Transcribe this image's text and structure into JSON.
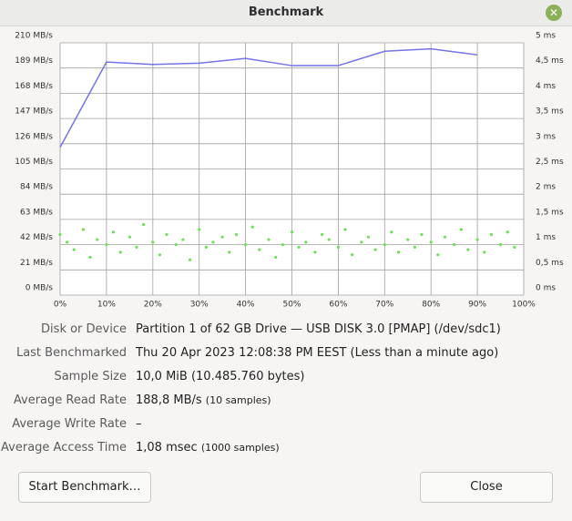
{
  "window": {
    "title": "Benchmark"
  },
  "chart_data": {
    "type": "line",
    "xticks": [
      {
        "value": 0,
        "label": "0%"
      },
      {
        "value": 10,
        "label": "10%"
      },
      {
        "value": 20,
        "label": "20%"
      },
      {
        "value": 30,
        "label": "30%"
      },
      {
        "value": 40,
        "label": "40%"
      },
      {
        "value": 50,
        "label": "50%"
      },
      {
        "value": 60,
        "label": "60%"
      },
      {
        "value": 70,
        "label": "70%"
      },
      {
        "value": 80,
        "label": "80%"
      },
      {
        "value": 90,
        "label": "90%"
      },
      {
        "value": 100,
        "label": "100%"
      }
    ],
    "xlim": [
      0,
      100
    ],
    "ylim": [
      0,
      210
    ],
    "yticks": [
      {
        "value": 0,
        "label": "0 MB/s"
      },
      {
        "value": 21,
        "label": "21 MB/s"
      },
      {
        "value": 42,
        "label": "42 MB/s"
      },
      {
        "value": 63,
        "label": "63 MB/s"
      },
      {
        "value": 84,
        "label": "84 MB/s"
      },
      {
        "value": 105,
        "label": "105 MB/s"
      },
      {
        "value": 126,
        "label": "126 MB/s"
      },
      {
        "value": 147,
        "label": "147 MB/s"
      },
      {
        "value": 168,
        "label": "168 MB/s"
      },
      {
        "value": 189,
        "label": "189 MB/s"
      },
      {
        "value": 210,
        "label": "210 MB/s"
      }
    ],
    "y2lim": [
      0,
      5
    ],
    "y2ticks": [
      {
        "value": 0,
        "label": "0 ms"
      },
      {
        "value": 0.5,
        "label": "0,5 ms"
      },
      {
        "value": 1,
        "label": "1 ms"
      },
      {
        "value": 1.5,
        "label": "1,5 ms"
      },
      {
        "value": 2,
        "label": "2 ms"
      },
      {
        "value": 2.5,
        "label": "2,5 ms"
      },
      {
        "value": 3,
        "label": "3 ms"
      },
      {
        "value": 3.5,
        "label": "3,5 ms"
      },
      {
        "value": 4,
        "label": "4 ms"
      },
      {
        "value": 4.5,
        "label": "4,5 ms"
      },
      {
        "value": 5,
        "label": "5 ms"
      }
    ],
    "grid": true,
    "series": [
      {
        "type": "line",
        "color": "#7474e8",
        "x": [
          0,
          10,
          20,
          30,
          40,
          50,
          60,
          70,
          80,
          90
        ],
        "values": [
          123,
          194,
          192,
          193,
          197,
          191,
          191,
          203,
          205,
          200
        ]
      },
      {
        "type": "scatter",
        "axis": "y2",
        "color": "#6ee05a",
        "x": [
          0,
          1.5,
          3,
          5,
          6.5,
          8,
          10,
          11.5,
          13,
          15,
          16.5,
          18,
          20,
          21.5,
          23,
          25,
          26.5,
          28,
          30,
          31.5,
          33,
          35,
          36.5,
          38,
          40,
          41.5,
          43,
          45,
          46.5,
          48,
          50,
          51.5,
          53,
          55,
          56.5,
          58,
          60,
          61.5,
          63,
          65,
          66.5,
          68,
          70,
          71.5,
          73,
          75,
          76.5,
          78,
          80,
          81.5,
          83,
          85,
          86.5,
          88,
          90,
          91.5,
          93,
          95,
          96.5,
          98
        ],
        "values": [
          1.2,
          1.05,
          0.9,
          1.3,
          0.75,
          1.1,
          1.0,
          1.25,
          0.85,
          1.15,
          0.95,
          1.4,
          1.05,
          0.8,
          1.2,
          1.0,
          1.1,
          0.7,
          1.3,
          0.95,
          1.05,
          1.15,
          0.85,
          1.2,
          1.0,
          1.35,
          0.9,
          1.1,
          0.75,
          1.0,
          1.25,
          0.95,
          1.05,
          0.85,
          1.2,
          1.1,
          0.95,
          1.3,
          0.8,
          1.05,
          1.15,
          0.9,
          1.0,
          1.25,
          0.85,
          1.1,
          0.95,
          1.2,
          1.05,
          0.8,
          1.15,
          1.0,
          1.3,
          0.9,
          1.1,
          0.85,
          1.2,
          1.0,
          1.25,
          0.95
        ]
      }
    ]
  },
  "info": [
    {
      "label": "Disk or Device",
      "value": "Partition 1 of 62 GB Drive — USB DISK 3.0 [PMAP] (/dev/sdc1)"
    },
    {
      "label": "Last Benchmarked",
      "value": "Thu 20 Apr 2023 12:08:38 PM EEST (Less than a minute ago)"
    },
    {
      "label": "Sample Size",
      "value": "10,0 MiB (10.485.760 bytes)"
    },
    {
      "label": "Average Read Rate",
      "value": "188,8 MB/s",
      "note": "(10 samples)"
    },
    {
      "label": "Average Write Rate",
      "value": "–"
    },
    {
      "label": "Average Access Time",
      "value": "1,08 msec",
      "note": "(1000 samples)"
    }
  ],
  "buttons": {
    "start": "Start Benchmark…",
    "close": "Close"
  }
}
